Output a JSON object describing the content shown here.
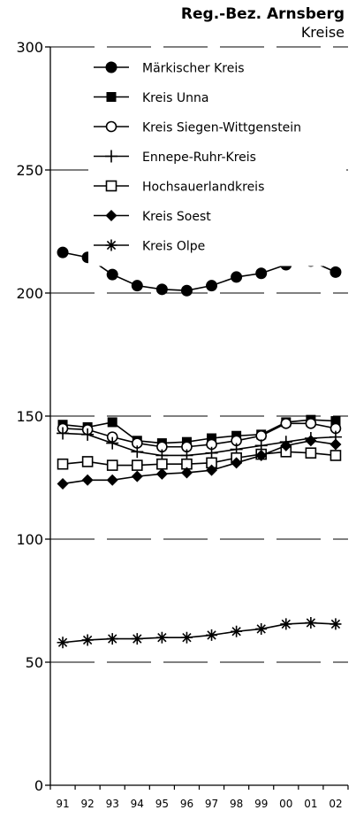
{
  "chart_data": {
    "type": "line",
    "title": "Reg.-Bez. Arnsberg",
    "subtitle": "Kreise",
    "xlabel": "",
    "ylabel": "",
    "ylim": [
      0,
      300
    ],
    "yticks": [
      0,
      50,
      100,
      150,
      200,
      250,
      300
    ],
    "grid": "horizontal dashed",
    "legend_position": "top-left",
    "categories": [
      "91",
      "92",
      "93",
      "94",
      "95",
      "96",
      "97",
      "98",
      "99",
      "00",
      "01",
      "02"
    ],
    "series": [
      {
        "name": "Märkischer Kreis",
        "marker": "filled-circle",
        "values": [
          216.5,
          214.5,
          207.5,
          203,
          201.5,
          201,
          203,
          206.5,
          208,
          211.5,
          213,
          208.5
        ]
      },
      {
        "name": "Kreis Unna",
        "marker": "filled-square",
        "values": [
          146.5,
          145.5,
          147.5,
          140,
          139,
          139.5,
          141,
          142,
          142.5,
          147.5,
          148.5,
          148
        ]
      },
      {
        "name": "Kreis Siegen-Wittgenstein",
        "marker": "open-circle",
        "values": [
          145,
          144.5,
          141.5,
          139,
          137.5,
          137.5,
          138.5,
          140,
          142,
          147,
          147,
          145
        ]
      },
      {
        "name": "Ennepe-Ruhr-Kreis",
        "marker": "plus",
        "values": [
          143,
          142.5,
          139,
          135.5,
          134,
          134,
          135,
          136.5,
          138,
          139.5,
          141,
          141.5
        ]
      },
      {
        "name": "Hochsauerlandkreis",
        "marker": "open-square",
        "values": [
          130.5,
          131.5,
          130,
          130,
          130.5,
          130.5,
          131,
          133,
          134.5,
          135.5,
          135,
          134
        ]
      },
      {
        "name": "Kreis Soest",
        "marker": "filled-diamond",
        "values": [
          122.5,
          124,
          124,
          125.5,
          126.5,
          127,
          128,
          131,
          134,
          138,
          140,
          138.5
        ]
      },
      {
        "name": "Kreis Olpe",
        "marker": "asterisk",
        "values": [
          58,
          59,
          59.5,
          59.5,
          60,
          60,
          61,
          62.5,
          63.5,
          65.5,
          66,
          65.5
        ]
      }
    ]
  }
}
